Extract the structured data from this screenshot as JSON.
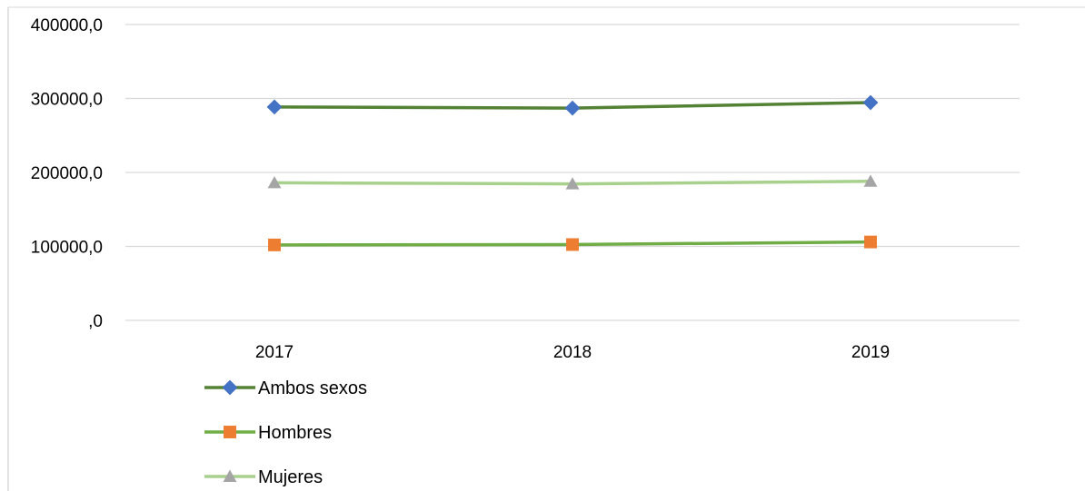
{
  "chart_data": {
    "type": "line",
    "categories": [
      "2017",
      "2018",
      "2019"
    ],
    "ylim": [
      0,
      400000
    ],
    "y_ticks": [
      0,
      100000,
      200000,
      300000,
      400000
    ],
    "y_tick_labels": [
      ",0",
      "100000,0",
      "200000,0",
      "300000,0",
      "400000,0"
    ],
    "grid": true,
    "legend_position": "bottom-left",
    "title": "",
    "xlabel": "",
    "ylabel": "",
    "series": [
      {
        "name": "Ambos sexos",
        "values": [
          288500,
          287000,
          294500
        ],
        "line_color": "#548235",
        "marker": "diamond",
        "marker_color": "#4472C4"
      },
      {
        "name": "Hombres",
        "values": [
          102000,
          102500,
          106000
        ],
        "line_color": "#70AD47",
        "marker": "square",
        "marker_color": "#ED7D31"
      },
      {
        "name": "Mujeres",
        "values": [
          186000,
          184500,
          188000
        ],
        "line_color": "#A9D18E",
        "marker": "triangle",
        "marker_color": "#A5A5A5"
      }
    ]
  }
}
